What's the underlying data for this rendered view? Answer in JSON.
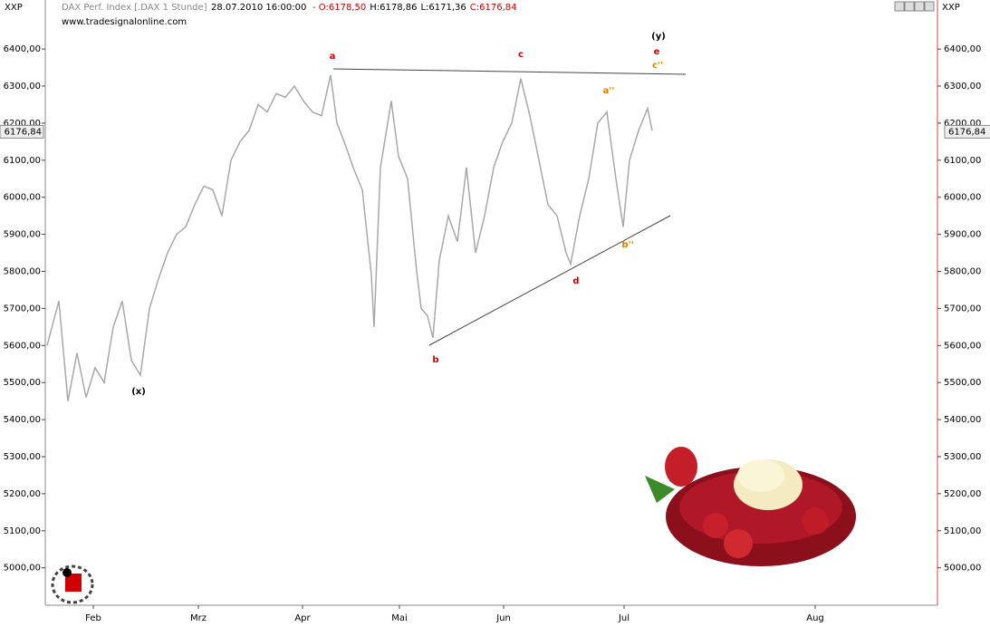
{
  "chart_data": {
    "type": "line",
    "instrument_code": "XXP",
    "title": "DAX Perf. Index [.DAX  1 Stunde]",
    "datetime": "28.07.2010 16:00:00",
    "ohlc": [
      {
        "label": "- O:6178,50",
        "color": "#d00000"
      },
      {
        "label": "H:6178,86",
        "color": "#000000"
      },
      {
        "label": "L:6171,36",
        "color": "#000000"
      },
      {
        "label": "C:6176,84",
        "color": "#d00000"
      }
    ],
    "source": "www.tradesignalonline.com",
    "color": "#a8a8a8",
    "x": [
      2,
      15,
      25,
      35,
      45,
      55,
      65,
      75,
      85,
      95,
      105,
      115,
      125,
      135,
      145,
      155,
      165,
      175,
      185,
      195,
      205,
      215,
      225,
      235,
      245,
      255,
      265,
      275,
      285,
      295,
      305,
      315,
      322,
      330,
      340,
      350,
      360,
      363,
      370,
      382,
      390,
      400,
      410,
      415,
      422,
      428,
      435,
      445,
      455,
      465,
      475,
      485,
      495,
      505,
      515,
      525,
      535,
      545,
      555,
      565,
      575,
      580,
      590,
      600,
      610,
      620,
      630,
      638,
      645,
      655,
      665,
      670
    ],
    "values": [
      5600,
      5720,
      5450,
      5580,
      5460,
      5540,
      5500,
      5650,
      5720,
      5560,
      5520,
      5700,
      5780,
      5850,
      5900,
      5920,
      5980,
      6030,
      6020,
      5950,
      6100,
      6150,
      6180,
      6250,
      6230,
      6280,
      6270,
      6300,
      6260,
      6230,
      6220,
      6330,
      6200,
      6150,
      6080,
      6020,
      5790,
      5650,
      6080,
      6260,
      6110,
      6050,
      5800,
      5700,
      5680,
      5620,
      5830,
      5950,
      5880,
      6080,
      5850,
      5950,
      6080,
      6150,
      6200,
      6320,
      6220,
      6100,
      5980,
      5950,
      5850,
      5820,
      5950,
      6050,
      6200,
      6230,
      6050,
      5920,
      6100,
      6180,
      6240,
      6180
    ],
    "xlim": [
      0,
      985
    ],
    "xticks": [
      {
        "value": 53,
        "label": "Feb"
      },
      {
        "value": 169,
        "label": "Mrz"
      },
      {
        "value": 284,
        "label": "Apr"
      },
      {
        "value": 391,
        "label": "Mai"
      },
      {
        "value": 506,
        "label": "Jun"
      },
      {
        "value": 639,
        "label": "Jul"
      },
      {
        "value": 850,
        "label": "Aug"
      }
    ],
    "ylim": [
      4899,
      6525
    ],
    "yticks": [
      {
        "value": 5000,
        "label": "5000,00"
      },
      {
        "value": 5100,
        "label": "5100,00"
      },
      {
        "value": 5200,
        "label": "5200,00"
      },
      {
        "value": 5300,
        "label": "5300,00"
      },
      {
        "value": 5400,
        "label": "5400,00"
      },
      {
        "value": 5500,
        "label": "5500,00"
      },
      {
        "value": 5600,
        "label": "5600,00"
      },
      {
        "value": 5700,
        "label": "5700,00"
      },
      {
        "value": 5800,
        "label": "5800,00"
      },
      {
        "value": 5900,
        "label": "5900,00"
      },
      {
        "value": 6000,
        "label": "6000,00"
      },
      {
        "value": 6100,
        "label": "6100,00"
      },
      {
        "value": 6200,
        "label": "6200,00"
      },
      {
        "value": 6300,
        "label": "6300,00"
      },
      {
        "value": 6400,
        "label": "6400,00"
      }
    ],
    "last_price": {
      "value": 6176.84,
      "label": "6176,84"
    },
    "annotations": [
      {
        "text": "a",
        "color": "#d00000"
      },
      {
        "text": "b",
        "color": "#d00000"
      },
      {
        "text": "c",
        "color": "#d00000"
      },
      {
        "text": "d",
        "color": "#d00000"
      },
      {
        "text": "e",
        "color": "#d00000"
      },
      {
        "text": "(x)",
        "color": "#000000"
      },
      {
        "text": "(y)",
        "color": "#000000"
      },
      {
        "text": "a''",
        "color": "#e08000"
      },
      {
        "text": "b''",
        "color": "#e08000"
      },
      {
        "text": "c''",
        "color": "#e08000"
      }
    ]
  }
}
